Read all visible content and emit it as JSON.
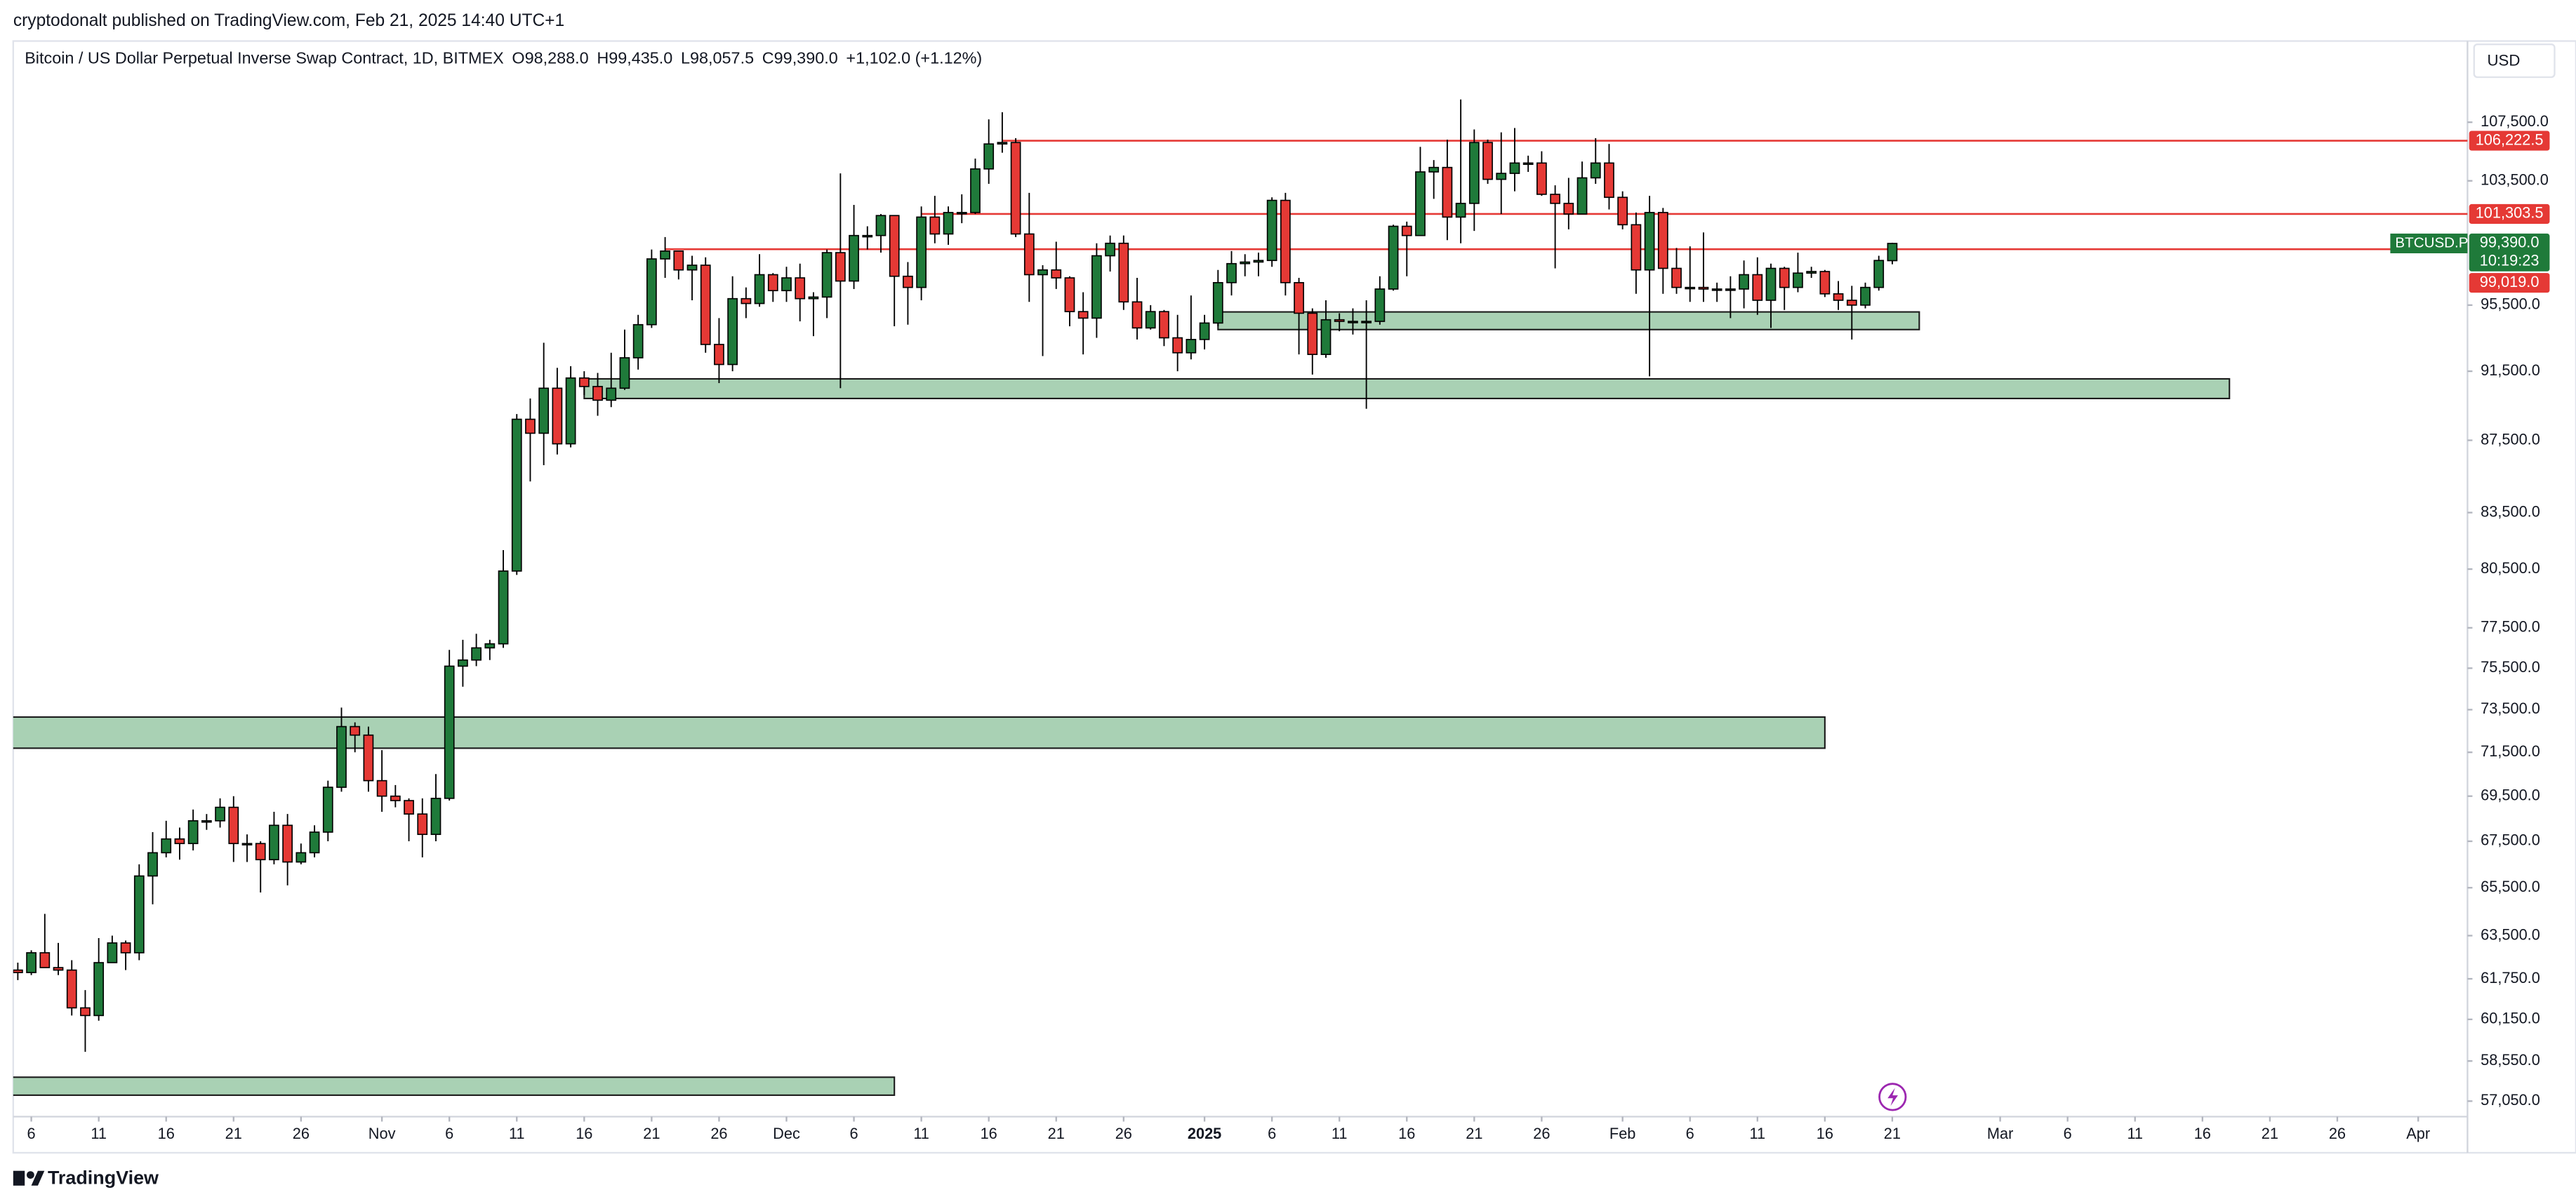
{
  "header": {
    "published": "cryptodonalt published on TradingView.com, Feb 21, 2025 14:40 UTC+1",
    "brand": "TradingView"
  },
  "chart_data": {
    "type": "candlestick",
    "title": "Bitcoin / US Dollar Perpetual Inverse Swap Contract, 1D, BITMEX",
    "ohlc_legend": [
      "O98,288.0",
      "H99,435.0",
      "L98,057.5",
      "C99,390.0",
      "+1,102.0 (+1.12%)"
    ],
    "currency": "USD",
    "symbol": "BTCUSD.P",
    "countdown": "10:19:23",
    "last_price": {
      "value": 99390,
      "label": "99,390.0"
    },
    "x": [
      "2024-10-05",
      "2024-10-06",
      "2024-10-07",
      "2024-10-08",
      "2024-10-09",
      "2024-10-10",
      "2024-10-11",
      "2024-10-12",
      "2024-10-13",
      "2024-10-14",
      "2024-10-15",
      "2024-10-16",
      "2024-10-17",
      "2024-10-18",
      "2024-10-19",
      "2024-10-20",
      "2024-10-21",
      "2024-10-22",
      "2024-10-23",
      "2024-10-24",
      "2024-10-25",
      "2024-10-26",
      "2024-10-27",
      "2024-10-28",
      "2024-10-29",
      "2024-10-30",
      "2024-10-31",
      "2024-11-01",
      "2024-11-02",
      "2024-11-03",
      "2024-11-04",
      "2024-11-05",
      "2024-11-06",
      "2024-11-07",
      "2024-11-08",
      "2024-11-09",
      "2024-11-10",
      "2024-11-11",
      "2024-11-12",
      "2024-11-13",
      "2024-11-14",
      "2024-11-15",
      "2024-11-16",
      "2024-11-17",
      "2024-11-18",
      "2024-11-19",
      "2024-11-20",
      "2024-11-21",
      "2024-11-22",
      "2024-11-23",
      "2024-11-24",
      "2024-11-25",
      "2024-11-26",
      "2024-11-27",
      "2024-11-28",
      "2024-11-29",
      "2024-11-30",
      "2024-12-01",
      "2024-12-02",
      "2024-12-03",
      "2024-12-04",
      "2024-12-05",
      "2024-12-06",
      "2024-12-07",
      "2024-12-08",
      "2024-12-09",
      "2024-12-10",
      "2024-12-11",
      "2024-12-12",
      "2024-12-13",
      "2024-12-14",
      "2024-12-15",
      "2024-12-16",
      "2024-12-17",
      "2024-12-18",
      "2024-12-19",
      "2024-12-20",
      "2024-12-21",
      "2024-12-22",
      "2024-12-23",
      "2024-12-24",
      "2024-12-25",
      "2024-12-26",
      "2024-12-27",
      "2024-12-28",
      "2024-12-29",
      "2024-12-30",
      "2024-12-31",
      "2025-01-01",
      "2025-01-02",
      "2025-01-03",
      "2025-01-04",
      "2025-01-05",
      "2025-01-06",
      "2025-01-07",
      "2025-01-08",
      "2025-01-09",
      "2025-01-10",
      "2025-01-11",
      "2025-01-12",
      "2025-01-13",
      "2025-01-14",
      "2025-01-15",
      "2025-01-16",
      "2025-01-17",
      "2025-01-18",
      "2025-01-19",
      "2025-01-20",
      "2025-01-21",
      "2025-01-22",
      "2025-01-23",
      "2025-01-24",
      "2025-01-25",
      "2025-01-26",
      "2025-01-27",
      "2025-01-28",
      "2025-01-29",
      "2025-01-30",
      "2025-01-31",
      "2025-02-01",
      "2025-02-02",
      "2025-02-03",
      "2025-02-04",
      "2025-02-05",
      "2025-02-06",
      "2025-02-07",
      "2025-02-08",
      "2025-02-09",
      "2025-02-10",
      "2025-02-11",
      "2025-02-12",
      "2025-02-13",
      "2025-02-14",
      "2025-02-15",
      "2025-02-16",
      "2025-02-17",
      "2025-02-18",
      "2025-02-19",
      "2025-02-20",
      "2025-02-21"
    ],
    "open": [
      62100,
      62000,
      62800,
      62200,
      62100,
      60600,
      60300,
      62400,
      63200,
      62800,
      66000,
      67000,
      67600,
      67400,
      68400,
      68400,
      69000,
      67400,
      67400,
      66700,
      68200,
      66600,
      67000,
      67900,
      69900,
      72700,
      72300,
      70200,
      69500,
      69300,
      68700,
      67800,
      69400,
      75600,
      75900,
      76500,
      76700,
      80400,
      88700,
      87900,
      90500,
      87300,
      91100,
      90600,
      89800,
      90500,
      92300,
      94300,
      98400,
      98900,
      97700,
      98000,
      93100,
      91900,
      95900,
      95600,
      97400,
      96400,
      97200,
      95900,
      96000,
      98800,
      97000,
      99900,
      99900,
      101200,
      97300,
      96600,
      101100,
      100000,
      101400,
      101400,
      104300,
      106000,
      106100,
      100000,
      97400,
      97700,
      97200,
      95100,
      94700,
      98600,
      99400,
      95700,
      94100,
      95100,
      93500,
      92600,
      93400,
      94400,
      96900,
      98100,
      98200,
      98300,
      102200,
      96900,
      95000,
      92500,
      94600,
      94500,
      94500,
      94500,
      96500,
      100500,
      99900,
      104100,
      104400,
      101100,
      102000,
      106100,
      103600,
      104000,
      104700,
      104700,
      102600,
      102000,
      101300,
      103700,
      104700,
      102400,
      100600,
      97700,
      101400,
      97800,
      96600,
      96600,
      96500,
      96500,
      96500,
      97400,
      95800,
      97800,
      96600,
      97500,
      97600,
      96200,
      95800,
      95500,
      96600,
      98288
    ],
    "high": [
      62400,
      62900,
      64400,
      63200,
      62500,
      61300,
      63400,
      63500,
      63300,
      66500,
      67900,
      68400,
      68100,
      68900,
      68700,
      69400,
      69500,
      67800,
      67500,
      68800,
      68700,
      67400,
      68200,
      70200,
      73600,
      72900,
      72700,
      71600,
      70000,
      69400,
      69400,
      70500,
      76400,
      76900,
      77200,
      76900,
      81500,
      89000,
      89900,
      93200,
      91700,
      91800,
      91500,
      91400,
      92600,
      94000,
      94900,
      99000,
      99800,
      98900,
      98600,
      98500,
      94700,
      97300,
      96600,
      98700,
      97500,
      97900,
      98100,
      96300,
      99000,
      104000,
      101900,
      100500,
      101300,
      101200,
      98200,
      101800,
      102500,
      101800,
      102600,
      105000,
      107700,
      108200,
      106400,
      102700,
      98000,
      99500,
      97300,
      96300,
      99400,
      99900,
      99900,
      97200,
      95500,
      95200,
      94900,
      96100,
      94900,
      97700,
      98900,
      98700,
      98800,
      102400,
      102700,
      97200,
      95300,
      95800,
      95000,
      95300,
      95800,
      97300,
      100600,
      100800,
      105800,
      104900,
      106300,
      109100,
      107000,
      106300,
      106800,
      107100,
      105200,
      105500,
      103200,
      103700,
      104800,
      106400,
      106000,
      102800,
      101400,
      102500,
      101700,
      99100,
      99200,
      100100,
      96900,
      97300,
      98300,
      98500,
      98100,
      97900,
      98800,
      97900,
      97700,
      97000,
      96700,
      96900,
      98600,
      99435
    ],
    "low": [
      61700,
      61900,
      62200,
      61900,
      60300,
      58900,
      60100,
      62400,
      62100,
      62500,
      64800,
      66800,
      66700,
      67100,
      68000,
      68100,
      66600,
      66600,
      65300,
      66500,
      65600,
      66500,
      66800,
      67500,
      69700,
      71500,
      69700,
      68800,
      69000,
      67500,
      66800,
      67500,
      69300,
      74600,
      75600,
      75900,
      76500,
      80200,
      85200,
      86100,
      86700,
      87100,
      90100,
      88900,
      89400,
      90400,
      91600,
      94100,
      97200,
      97100,
      95800,
      92600,
      90800,
      91500,
      94700,
      95400,
      95700,
      95700,
      94500,
      93600,
      94700,
      90500,
      96500,
      99000,
      98800,
      94200,
      94300,
      95800,
      99400,
      99300,
      100700,
      101300,
      103300,
      105400,
      99800,
      95700,
      92400,
      96500,
      94200,
      92500,
      93500,
      97600,
      95200,
      93400,
      94000,
      93000,
      91500,
      92200,
      92800,
      94200,
      96100,
      97300,
      97300,
      97900,
      96100,
      92500,
      91300,
      92300,
      93900,
      93700,
      89300,
      94300,
      96400,
      97300,
      99900,
      102300,
      99600,
      99400,
      100200,
      103300,
      101300,
      102800,
      104100,
      102500,
      97800,
      100300,
      101300,
      103300,
      101600,
      100300,
      96200,
      91200,
      96200,
      96200,
      95700,
      95700,
      95700,
      94700,
      95300,
      94900,
      94100,
      95200,
      96300,
      97200,
      96000,
      95200,
      93400,
      95300,
      96400,
      98057.5
    ],
    "close": [
      62000,
      62800,
      62200,
      62100,
      60600,
      60300,
      62400,
      63200,
      62800,
      66000,
      67000,
      67600,
      67400,
      68400,
      68400,
      69000,
      67400,
      67400,
      66700,
      68200,
      66600,
      67000,
      67900,
      69900,
      72700,
      72300,
      70200,
      69500,
      69300,
      68700,
      67800,
      69400,
      75600,
      75900,
      76500,
      76700,
      80400,
      88700,
      87900,
      90500,
      87300,
      91100,
      90600,
      89800,
      90500,
      92300,
      94300,
      98400,
      98900,
      97700,
      98000,
      93100,
      91900,
      95900,
      95600,
      97400,
      96400,
      97200,
      95900,
      96000,
      98800,
      97000,
      99900,
      99900,
      101200,
      97300,
      96600,
      101100,
      100000,
      101400,
      101400,
      104300,
      106000,
      106100,
      100000,
      97400,
      97700,
      97200,
      95100,
      94700,
      98600,
      99400,
      95700,
      94100,
      95100,
      93500,
      92600,
      93400,
      94400,
      96900,
      98100,
      98200,
      98300,
      102200,
      96900,
      95000,
      92500,
      94600,
      94500,
      94500,
      94500,
      96500,
      100500,
      99900,
      104100,
      104400,
      101100,
      102000,
      106100,
      103600,
      104000,
      104700,
      104700,
      102600,
      102000,
      101300,
      103700,
      104700,
      102400,
      100600,
      97700,
      101400,
      97800,
      96600,
      96600,
      96500,
      96500,
      96500,
      97400,
      95800,
      97800,
      96600,
      97500,
      97600,
      96200,
      95800,
      95500,
      96600,
      98300,
      99390
    ],
    "up_color": "#1f7a3a",
    "down_color": "#e53935",
    "log_scale": true,
    "ylim": [
      56480,
      113300
    ],
    "yticks": [
      {
        "value": 107500,
        "label": "107,500.0"
      },
      {
        "value": 103500,
        "label": "103,500.0"
      },
      {
        "value": 95500,
        "label": "95,500.0"
      },
      {
        "value": 91500,
        "label": "91,500.0"
      },
      {
        "value": 87500,
        "label": "87,500.0"
      },
      {
        "value": 83500,
        "label": "83,500.0"
      },
      {
        "value": 80500,
        "label": "80,500.0"
      },
      {
        "value": 77500,
        "label": "77,500.0"
      },
      {
        "value": 75500,
        "label": "75,500.0"
      },
      {
        "value": 73500,
        "label": "73,500.0"
      },
      {
        "value": 71500,
        "label": "71,500.0"
      },
      {
        "value": 69500,
        "label": "69,500.0"
      },
      {
        "value": 67500,
        "label": "67,500.0"
      },
      {
        "value": 65500,
        "label": "65,500.0"
      },
      {
        "value": 63500,
        "label": "63,500.0"
      },
      {
        "value": 61750,
        "label": "61,750.0"
      },
      {
        "value": 60150,
        "label": "60,150.0"
      },
      {
        "value": 58550,
        "label": "58,550.0"
      },
      {
        "value": 57050,
        "label": "57,050.0"
      }
    ],
    "xlim": [
      "2024-10-05",
      "2025-04-01"
    ],
    "xticks": [
      {
        "value": "2024-10-06",
        "label": "6"
      },
      {
        "value": "2024-10-11",
        "label": "11"
      },
      {
        "value": "2024-10-16",
        "label": "16"
      },
      {
        "value": "2024-10-21",
        "label": "21"
      },
      {
        "value": "2024-10-26",
        "label": "26"
      },
      {
        "value": "2024-11-01",
        "label": "Nov"
      },
      {
        "value": "2024-11-06",
        "label": "6"
      },
      {
        "value": "2024-11-11",
        "label": "11"
      },
      {
        "value": "2024-11-16",
        "label": "16"
      },
      {
        "value": "2024-11-21",
        "label": "21"
      },
      {
        "value": "2024-11-26",
        "label": "26"
      },
      {
        "value": "2024-12-01",
        "label": "Dec"
      },
      {
        "value": "2024-12-06",
        "label": "6"
      },
      {
        "value": "2024-12-11",
        "label": "11"
      },
      {
        "value": "2024-12-16",
        "label": "16"
      },
      {
        "value": "2024-12-21",
        "label": "21"
      },
      {
        "value": "2024-12-26",
        "label": "26"
      },
      {
        "value": "2025-01-01",
        "label": "2025"
      },
      {
        "value": "2025-01-06",
        "label": "6"
      },
      {
        "value": "2025-01-11",
        "label": "11"
      },
      {
        "value": "2025-01-16",
        "label": "16"
      },
      {
        "value": "2025-01-21",
        "label": "21"
      },
      {
        "value": "2025-01-26",
        "label": "26"
      },
      {
        "value": "2025-02-01",
        "label": "Feb"
      },
      {
        "value": "2025-02-06",
        "label": "6"
      },
      {
        "value": "2025-02-11",
        "label": "11"
      },
      {
        "value": "2025-02-16",
        "label": "16"
      },
      {
        "value": "2025-02-21",
        "label": "21"
      },
      {
        "value": "2025-03-01",
        "label": "Mar"
      },
      {
        "value": "2025-03-06",
        "label": "6"
      },
      {
        "value": "2025-03-11",
        "label": "11"
      },
      {
        "value": "2025-03-16",
        "label": "16"
      },
      {
        "value": "2025-03-21",
        "label": "21"
      },
      {
        "value": "2025-03-26",
        "label": "26"
      },
      {
        "value": "2025-04-01",
        "label": "Apr"
      }
    ],
    "price_lines": [
      {
        "value": 106222.5,
        "label": "106,222.5",
        "from": "2024-12-17"
      },
      {
        "value": 101303.5,
        "label": "101,303.5",
        "from": "2024-12-11"
      },
      {
        "value": 99019,
        "label": "99,019.0",
        "from": "2024-11-22"
      }
    ],
    "line_color": "#e53935",
    "zones": [
      {
        "top": 95080,
        "bottom": 94000,
        "from": "2025-01-02",
        "to": "2025-02-23"
      },
      {
        "top": 91050,
        "bottom": 89900,
        "from": "2024-11-16",
        "to": "2025-03-18"
      },
      {
        "top": 73150,
        "bottom": 71690,
        "from": "2024-10-04",
        "to": "2025-02-16"
      },
      {
        "top": 57940,
        "bottom": 57270,
        "from": "2024-10-04",
        "to": "2024-12-09"
      }
    ],
    "zone_color": "#a9d1b4"
  }
}
